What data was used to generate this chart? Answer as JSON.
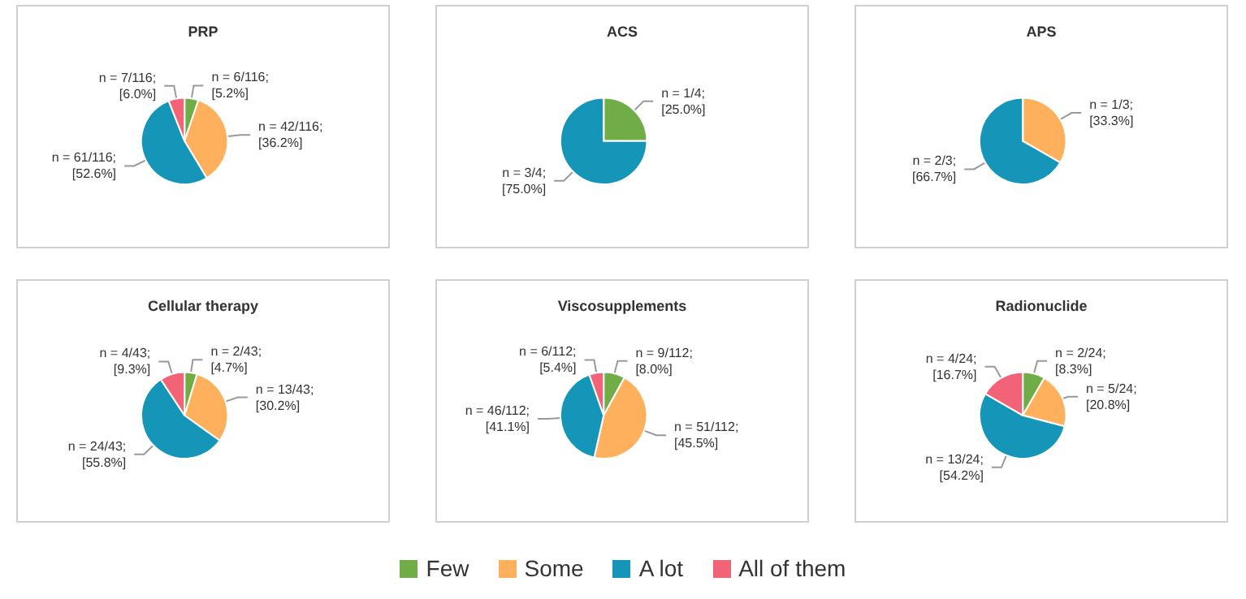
{
  "chart_data": [
    {
      "type": "pie",
      "title": "PRP",
      "categories": [
        "Few",
        "Some",
        "A lot",
        "All of them"
      ],
      "values": [
        5.2,
        36.2,
        52.6,
        6.0
      ],
      "colors": [
        "#70ad47",
        "#ffb05c",
        "#1596b8",
        "#f26378"
      ],
      "value_labels": [
        "n = 6/116; [5.2%]",
        "n = 42/116; [36.2%]",
        "n = 61/116; [52.6%]",
        "n = 7/116; [6.0%]"
      ],
      "legend": "bottom"
    },
    {
      "type": "pie",
      "title": "ACS",
      "categories": [
        null,
        null,
        null,
        null
      ],
      "values": [
        25.0,
        0,
        75.0,
        0
      ],
      "colors": [
        "#70ad47",
        "#ffb05c",
        "#1596b8",
        "#f26378"
      ],
      "value_labels": [
        "n = 1/4; [25.0%]",
        null,
        "n = 3/4; [75.0%]",
        null
      ]
    },
    {
      "type": "pie",
      "title": "APS",
      "categories": [
        null,
        null,
        null,
        null
      ],
      "values": [
        0,
        33.3,
        66.7,
        0
      ],
      "colors": [
        "#70ad47",
        "#ffb05c",
        "#1596b8",
        "#f26378"
      ],
      "value_labels": [
        null,
        "n = 1/3; [33.3%]",
        "n = 2/3; [66.7%]",
        null
      ]
    },
    {
      "type": "pie",
      "title": "Cellular therapy",
      "categories": [
        null,
        null,
        null,
        null
      ],
      "values": [
        4.7,
        30.2,
        55.8,
        9.3
      ],
      "colors": [
        "#70ad47",
        "#ffb05c",
        "#1596b8",
        "#f26378"
      ],
      "value_labels": [
        "n = 2/43; [4.7%]",
        "n = 13/43; [30.2%]",
        "n = 24/43; [55.8%]",
        "n = 4/43; [9.3%]"
      ]
    },
    {
      "type": "pie",
      "title": "Viscosupplements",
      "categories": [
        null,
        null,
        null,
        null
      ],
      "values": [
        8.0,
        45.5,
        41.1,
        5.4
      ],
      "colors": [
        "#70ad47",
        "#ffb05c",
        "#1596b8",
        "#f26378"
      ],
      "value_labels": [
        "n = 9/112; [8.0%]",
        "n = 51/112; [45.5%]",
        "n = 46/112; [41.1%]",
        "n = 6/112; [5.4%]"
      ]
    },
    {
      "type": "pie",
      "title": "Radionuclide",
      "categories": [
        null,
        null,
        null,
        null
      ],
      "values": [
        8.3,
        20.8,
        54.2,
        16.7
      ],
      "colors": [
        "#70ad47",
        "#ffb05c",
        "#1596b8",
        "#f26378"
      ],
      "value_labels": [
        "n = 2/24; [8.3%]",
        "n = 5/24; [20.8%]",
        "n = 13/24; [54.2%]",
        "n = 4/24; [16.7%]"
      ]
    }
  ]
}
